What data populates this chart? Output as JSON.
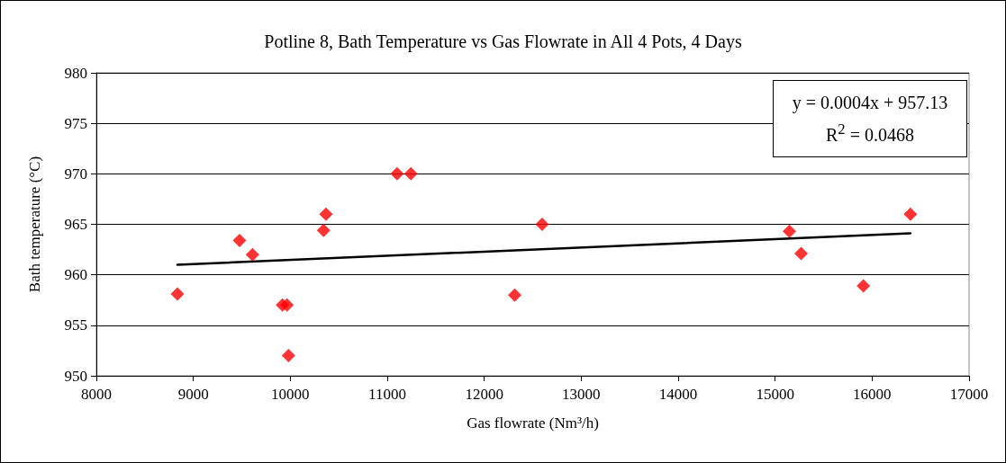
{
  "chart_data": {
    "type": "scatter",
    "title": "Potline 8, Bath Temperature vs Gas Flowrate in All 4 Pots, 4 Days",
    "xlabel": "Gas flowrate (Nm³/h)",
    "ylabel": "Bath temperature (°C)",
    "annotations": [
      "y = 0.0004x + 957.13",
      "R$^{2}$ = 0.0468"
    ],
    "xlim": [
      8000,
      17000
    ],
    "xticks": [
      8000,
      9000,
      10000,
      11000,
      12000,
      13000,
      14000,
      15000,
      16000,
      17000
    ],
    "ylim": [
      950,
      980
    ],
    "yticks": [
      950,
      955,
      960,
      965,
      970,
      975,
      980
    ],
    "grid": "y",
    "marker": "diamond",
    "series": [
      {
        "color": "#ff0000",
        "x": [
          8836,
          9476,
          9610,
          9919,
          9966,
          9981,
          10343,
          10368,
          11101,
          11243,
          12314,
          12597,
          15147,
          15268,
          15910,
          16395
        ],
        "values": [
          958.1,
          963.4,
          962.0,
          957.0,
          957.0,
          952.0,
          964.4,
          966.0,
          970.0,
          970.0,
          958.0,
          965.0,
          964.3,
          962.1,
          958.9,
          966.0
        ]
      },
      {
        "type": "line",
        "color": "#000000",
        "marker": "none",
        "line_style": "solid",
        "x": [
          8836,
          16395
        ],
        "values": [
          961.0,
          964.1
        ]
      }
    ]
  }
}
